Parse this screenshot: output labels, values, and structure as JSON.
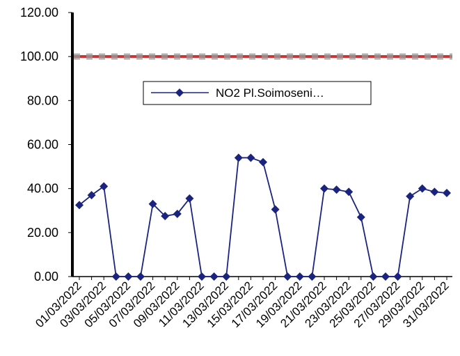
{
  "chart_data": {
    "type": "line",
    "categories": [
      "01/03/2022",
      "02/03/2022",
      "03/03/2022",
      "04/03/2022",
      "05/03/2022",
      "06/03/2022",
      "07/03/2022",
      "08/03/2022",
      "09/03/2022",
      "10/03/2022",
      "11/03/2022",
      "12/03/2022",
      "13/03/2022",
      "14/03/2022",
      "15/03/2022",
      "16/03/2022",
      "17/03/2022",
      "18/03/2022",
      "19/03/2022",
      "20/03/2022",
      "21/03/2022",
      "22/03/2022",
      "23/03/2022",
      "24/03/2022",
      "25/03/2022",
      "26/03/2022",
      "27/03/2022",
      "28/03/2022",
      "29/03/2022",
      "30/03/2022",
      "31/03/2022"
    ],
    "x_tick_labels": [
      "01/03/2022",
      "03/03/2022",
      "05/03/2022",
      "07/03/2022",
      "09/03/2022",
      "11/03/2022",
      "13/03/2022",
      "15/03/2022",
      "17/03/2022",
      "19/03/2022",
      "21/03/2022",
      "23/03/2022",
      "25/03/2022",
      "27/03/2022",
      "29/03/2022",
      "31/03/2022"
    ],
    "y_tick_labels": [
      "0.00",
      "20.00",
      "40.00",
      "60.00",
      "80.00",
      "100.00",
      "120.00"
    ],
    "ylim": [
      0,
      120
    ],
    "series": [
      {
        "name": "NO2 Pl.Soimoseni…",
        "color": "#1a237e",
        "marker": "diamond",
        "values": [
          32.5,
          37.0,
          41.0,
          0,
          0,
          0,
          33.0,
          27.5,
          28.5,
          35.5,
          0,
          0,
          0,
          54.0,
          54.0,
          52.0,
          30.5,
          0,
          0,
          0,
          40.0,
          39.5,
          38.5,
          27.0,
          0,
          0,
          0,
          36.5,
          40.0,
          38.5,
          38.0
        ]
      }
    ],
    "threshold": {
      "value": 100,
      "color": "#cc3333",
      "style": "dashed"
    },
    "legend": {
      "position": "top-center"
    },
    "grid": false
  }
}
